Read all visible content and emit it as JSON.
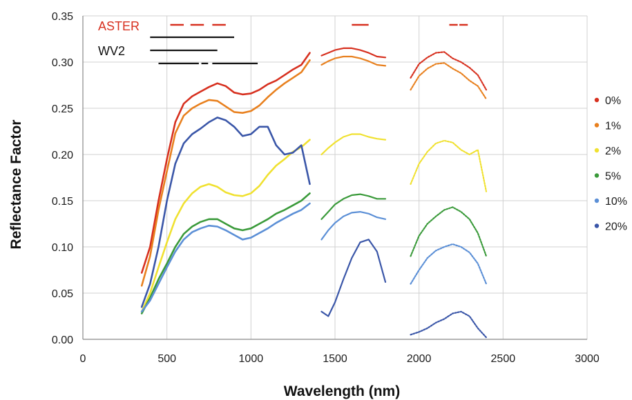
{
  "chart_data": {
    "type": "line",
    "title": "",
    "xlabel": "Wavelength (nm)",
    "ylabel": "Reflectance Factor",
    "xlim": [
      0,
      3000
    ],
    "ylim": [
      0,
      0.35
    ],
    "xticks": [
      0,
      500,
      1000,
      1500,
      2000,
      2500,
      3000
    ],
    "yticks": [
      0.0,
      0.05,
      0.1,
      0.15,
      0.2,
      0.25,
      0.3,
      0.35
    ],
    "xtick_labels": [
      "0",
      "500",
      "1000",
      "1500",
      "2000",
      "2500",
      "3000"
    ],
    "ytick_labels": [
      "0.00",
      "0.05",
      "0.10",
      "0.15",
      "0.20",
      "0.25",
      "0.30",
      "0.35"
    ],
    "grid": true,
    "legend": "right",
    "series": [
      {
        "name": "0%",
        "color": "#d7301f",
        "segments": [
          [
            [
              350,
              0.072
            ],
            [
              400,
              0.1
            ],
            [
              450,
              0.15
            ],
            [
              500,
              0.195
            ],
            [
              550,
              0.235
            ],
            [
              600,
              0.255
            ],
            [
              650,
              0.263
            ],
            [
              700,
              0.268
            ],
            [
              750,
              0.273
            ],
            [
              800,
              0.277
            ],
            [
              850,
              0.274
            ],
            [
              900,
              0.267
            ],
            [
              950,
              0.265
            ],
            [
              1000,
              0.266
            ],
            [
              1050,
              0.27
            ],
            [
              1100,
              0.276
            ],
            [
              1150,
              0.28
            ],
            [
              1200,
              0.286
            ],
            [
              1250,
              0.292
            ],
            [
              1300,
              0.297
            ],
            [
              1350,
              0.31
            ]
          ],
          [
            [
              1420,
              0.307
            ],
            [
              1460,
              0.31
            ],
            [
              1500,
              0.313
            ],
            [
              1550,
              0.315
            ],
            [
              1600,
              0.315
            ],
            [
              1650,
              0.313
            ],
            [
              1700,
              0.31
            ],
            [
              1750,
              0.306
            ],
            [
              1800,
              0.305
            ]
          ],
          [
            [
              1950,
              0.283
            ],
            [
              2000,
              0.298
            ],
            [
              2050,
              0.305
            ],
            [
              2100,
              0.31
            ],
            [
              2150,
              0.311
            ],
            [
              2200,
              0.304
            ],
            [
              2250,
              0.3
            ],
            [
              2300,
              0.294
            ],
            [
              2350,
              0.286
            ],
            [
              2400,
              0.27
            ]
          ]
        ]
      },
      {
        "name": "1%",
        "color": "#e8801e",
        "segments": [
          [
            [
              350,
              0.058
            ],
            [
              400,
              0.09
            ],
            [
              450,
              0.14
            ],
            [
              500,
              0.182
            ],
            [
              550,
              0.223
            ],
            [
              600,
              0.242
            ],
            [
              650,
              0.25
            ],
            [
              700,
              0.255
            ],
            [
              750,
              0.259
            ],
            [
              800,
              0.258
            ],
            [
              850,
              0.252
            ],
            [
              900,
              0.246
            ],
            [
              950,
              0.245
            ],
            [
              1000,
              0.247
            ],
            [
              1050,
              0.253
            ],
            [
              1100,
              0.262
            ],
            [
              1150,
              0.27
            ],
            [
              1200,
              0.277
            ],
            [
              1250,
              0.283
            ],
            [
              1300,
              0.289
            ],
            [
              1350,
              0.302
            ]
          ],
          [
            [
              1420,
              0.297
            ],
            [
              1460,
              0.301
            ],
            [
              1500,
              0.304
            ],
            [
              1550,
              0.306
            ],
            [
              1600,
              0.306
            ],
            [
              1650,
              0.304
            ],
            [
              1700,
              0.301
            ],
            [
              1750,
              0.297
            ],
            [
              1800,
              0.296
            ]
          ],
          [
            [
              1950,
              0.27
            ],
            [
              2000,
              0.285
            ],
            [
              2050,
              0.293
            ],
            [
              2100,
              0.298
            ],
            [
              2150,
              0.299
            ],
            [
              2200,
              0.293
            ],
            [
              2250,
              0.288
            ],
            [
              2300,
              0.28
            ],
            [
              2350,
              0.274
            ],
            [
              2400,
              0.26
            ]
          ]
        ]
      },
      {
        "name": "2%",
        "color": "#f0e130",
        "segments": [
          [
            [
              350,
              0.03
            ],
            [
              400,
              0.05
            ],
            [
              450,
              0.078
            ],
            [
              500,
              0.105
            ],
            [
              550,
              0.13
            ],
            [
              600,
              0.147
            ],
            [
              650,
              0.158
            ],
            [
              700,
              0.165
            ],
            [
              750,
              0.168
            ],
            [
              800,
              0.165
            ],
            [
              850,
              0.159
            ],
            [
              900,
              0.156
            ],
            [
              950,
              0.155
            ],
            [
              1000,
              0.158
            ],
            [
              1050,
              0.166
            ],
            [
              1100,
              0.178
            ],
            [
              1150,
              0.188
            ],
            [
              1200,
              0.195
            ],
            [
              1250,
              0.203
            ],
            [
              1300,
              0.208
            ],
            [
              1350,
              0.216
            ]
          ],
          [
            [
              1420,
              0.2
            ],
            [
              1460,
              0.207
            ],
            [
              1500,
              0.213
            ],
            [
              1550,
              0.219
            ],
            [
              1600,
              0.222
            ],
            [
              1650,
              0.222
            ],
            [
              1700,
              0.219
            ],
            [
              1750,
              0.217
            ],
            [
              1800,
              0.216
            ]
          ],
          [
            [
              1950,
              0.168
            ],
            [
              2000,
              0.19
            ],
            [
              2050,
              0.203
            ],
            [
              2100,
              0.212
            ],
            [
              2150,
              0.215
            ],
            [
              2200,
              0.213
            ],
            [
              2250,
              0.205
            ],
            [
              2300,
              0.2
            ],
            [
              2350,
              0.205
            ],
            [
              2400,
              0.16
            ]
          ]
        ]
      },
      {
        "name": "5%",
        "color": "#3a9a3a",
        "segments": [
          [
            [
              350,
              0.028
            ],
            [
              400,
              0.045
            ],
            [
              450,
              0.065
            ],
            [
              500,
              0.082
            ],
            [
              550,
              0.1
            ],
            [
              600,
              0.114
            ],
            [
              650,
              0.122
            ],
            [
              700,
              0.127
            ],
            [
              750,
              0.13
            ],
            [
              800,
              0.13
            ],
            [
              850,
              0.125
            ],
            [
              900,
              0.12
            ],
            [
              950,
              0.118
            ],
            [
              1000,
              0.12
            ],
            [
              1050,
              0.125
            ],
            [
              1100,
              0.13
            ],
            [
              1150,
              0.136
            ],
            [
              1200,
              0.14
            ],
            [
              1250,
              0.145
            ],
            [
              1300,
              0.15
            ],
            [
              1350,
              0.158
            ]
          ],
          [
            [
              1420,
              0.13
            ],
            [
              1460,
              0.138
            ],
            [
              1500,
              0.146
            ],
            [
              1550,
              0.152
            ],
            [
              1600,
              0.156
            ],
            [
              1650,
              0.157
            ],
            [
              1700,
              0.155
            ],
            [
              1750,
              0.152
            ],
            [
              1800,
              0.152
            ]
          ],
          [
            [
              1950,
              0.09
            ],
            [
              2000,
              0.112
            ],
            [
              2050,
              0.125
            ],
            [
              2100,
              0.133
            ],
            [
              2150,
              0.14
            ],
            [
              2200,
              0.143
            ],
            [
              2250,
              0.138
            ],
            [
              2300,
              0.13
            ],
            [
              2350,
              0.115
            ],
            [
              2400,
              0.09
            ]
          ]
        ]
      },
      {
        "name": "10%",
        "color": "#5b8fd6",
        "segments": [
          [
            [
              350,
              0.03
            ],
            [
              400,
              0.042
            ],
            [
              450,
              0.06
            ],
            [
              500,
              0.078
            ],
            [
              550,
              0.095
            ],
            [
              600,
              0.108
            ],
            [
              650,
              0.116
            ],
            [
              700,
              0.12
            ],
            [
              750,
              0.123
            ],
            [
              800,
              0.122
            ],
            [
              850,
              0.118
            ],
            [
              900,
              0.113
            ],
            [
              950,
              0.108
            ],
            [
              1000,
              0.11
            ],
            [
              1050,
              0.115
            ],
            [
              1100,
              0.12
            ],
            [
              1150,
              0.126
            ],
            [
              1200,
              0.131
            ],
            [
              1250,
              0.136
            ],
            [
              1300,
              0.14
            ],
            [
              1350,
              0.147
            ]
          ],
          [
            [
              1420,
              0.108
            ],
            [
              1460,
              0.118
            ],
            [
              1500,
              0.126
            ],
            [
              1550,
              0.133
            ],
            [
              1600,
              0.137
            ],
            [
              1650,
              0.138
            ],
            [
              1700,
              0.136
            ],
            [
              1750,
              0.132
            ],
            [
              1800,
              0.13
            ]
          ],
          [
            [
              1950,
              0.06
            ],
            [
              2000,
              0.075
            ],
            [
              2050,
              0.088
            ],
            [
              2100,
              0.096
            ],
            [
              2150,
              0.1
            ],
            [
              2200,
              0.103
            ],
            [
              2250,
              0.1
            ],
            [
              2300,
              0.094
            ],
            [
              2350,
              0.082
            ],
            [
              2400,
              0.06
            ]
          ]
        ]
      },
      {
        "name": "20%",
        "color": "#3a56a8",
        "segments": [
          [
            [
              350,
              0.035
            ],
            [
              400,
              0.06
            ],
            [
              450,
              0.1
            ],
            [
              500,
              0.15
            ],
            [
              550,
              0.19
            ],
            [
              600,
              0.212
            ],
            [
              650,
              0.222
            ],
            [
              700,
              0.228
            ],
            [
              750,
              0.235
            ],
            [
              800,
              0.24
            ],
            [
              850,
              0.237
            ],
            [
              900,
              0.23
            ],
            [
              950,
              0.22
            ],
            [
              1000,
              0.222
            ],
            [
              1050,
              0.23
            ],
            [
              1100,
              0.23
            ],
            [
              1150,
              0.21
            ],
            [
              1200,
              0.2
            ],
            [
              1250,
              0.202
            ],
            [
              1300,
              0.21
            ],
            [
              1350,
              0.168
            ]
          ],
          [
            [
              1420,
              0.03
            ],
            [
              1460,
              0.025
            ],
            [
              1500,
              0.04
            ],
            [
              1550,
              0.065
            ],
            [
              1600,
              0.088
            ],
            [
              1650,
              0.105
            ],
            [
              1700,
              0.108
            ],
            [
              1750,
              0.095
            ],
            [
              1800,
              0.062
            ]
          ],
          [
            [
              1950,
              0.005
            ],
            [
              2000,
              0.008
            ],
            [
              2050,
              0.012
            ],
            [
              2100,
              0.018
            ],
            [
              2150,
              0.022
            ],
            [
              2200,
              0.028
            ],
            [
              2250,
              0.03
            ],
            [
              2300,
              0.025
            ],
            [
              2350,
              0.012
            ],
            [
              2400,
              0.002
            ]
          ]
        ]
      }
    ],
    "sensor_bands": [
      {
        "name": "ASTER",
        "color": "#d7301f",
        "rows": [
          [
            [
              520,
              600
            ],
            [
              640,
              720
            ],
            [
              770,
              850
            ]
          ],
          [],
          []
        ],
        "extra": [
          [
            1600,
            1700
          ],
          [
            2180,
            2230
          ],
          [
            2240,
            2290
          ]
        ]
      },
      {
        "name": "WV2",
        "color": "#111111",
        "rows": [
          [
            [
              400,
              900
            ]
          ],
          [
            [
              400,
              800
            ]
          ],
          [
            [
              450,
              690
            ],
            [
              705,
              745
            ],
            [
              770,
              1040
            ]
          ]
        ]
      }
    ]
  }
}
